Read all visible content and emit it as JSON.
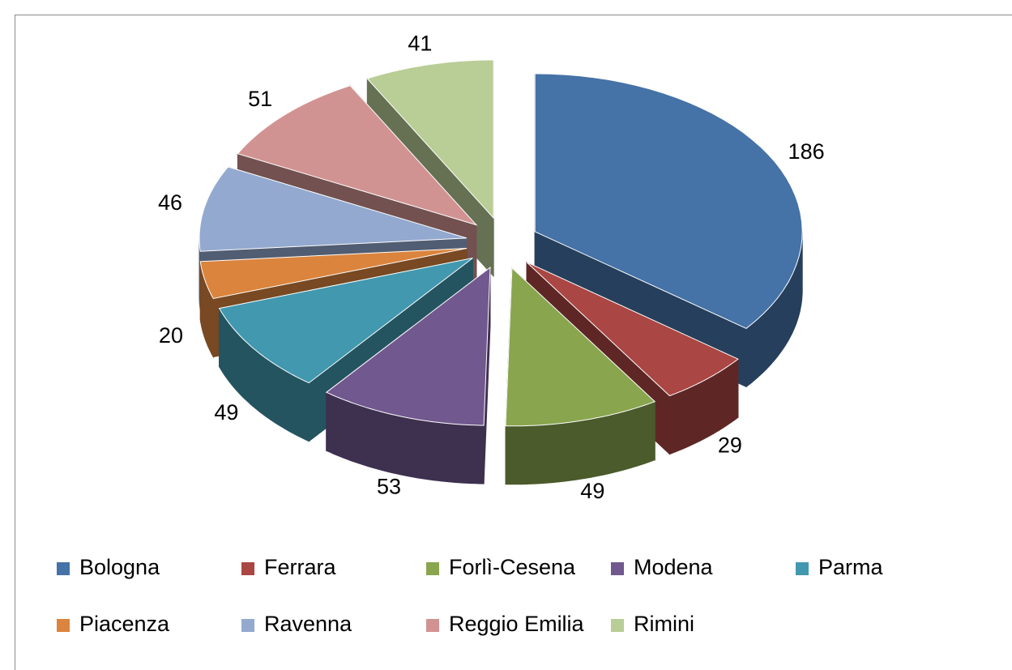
{
  "chart_data": {
    "type": "pie3d",
    "categories": [
      "Bologna",
      "Ferrara",
      "Forlì-Cesena",
      "Modena",
      "Parma",
      "Piacenza",
      "Ravenna",
      "Reggio Emilia",
      "Rimini"
    ],
    "values": [
      186,
      29,
      49,
      53,
      49,
      20,
      46,
      51,
      41
    ],
    "colors": [
      "#4572a7",
      "#aa4643",
      "#89a54e",
      "#71588f",
      "#4198af",
      "#db843d",
      "#93a9cf",
      "#d19392",
      "#b9cd96"
    ],
    "legend": "bottom"
  }
}
